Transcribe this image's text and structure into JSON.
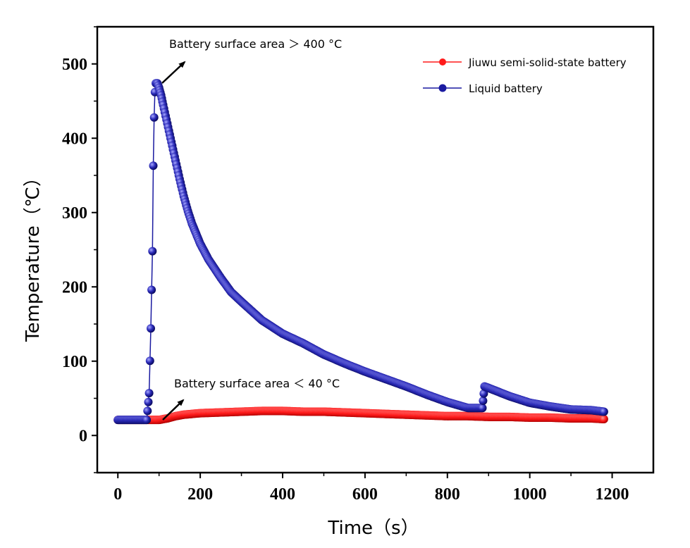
{
  "chart_data": {
    "type": "scatter",
    "xlabel": "Time（s）",
    "ylabel": "Temperature（℃）",
    "xlim": [
      -50,
      1300
    ],
    "ylim": [
      -50,
      550
    ],
    "xticks": [
      "0",
      "200",
      "400",
      "600",
      "800",
      "1000",
      "1200"
    ],
    "yticks": [
      "0",
      "100",
      "200",
      "300",
      "400",
      "500"
    ],
    "grid": false,
    "legend_position": "top-right",
    "series": [
      {
        "name": "Jiuwu semi-solid-state battery",
        "color": "#ff1a1a",
        "x": [
          0,
          50,
          80,
          100,
          120,
          140,
          160,
          180,
          200,
          250,
          300,
          350,
          400,
          450,
          500,
          550,
          600,
          650,
          700,
          750,
          800,
          850,
          900,
          950,
          1000,
          1050,
          1100,
          1150,
          1180
        ],
        "y": [
          21,
          21,
          21,
          21,
          23,
          26,
          28,
          29,
          30,
          31,
          32,
          33,
          33,
          32,
          32,
          31,
          30,
          29,
          28,
          27,
          26,
          26,
          25,
          25,
          24,
          24,
          23,
          23,
          22
        ]
      },
      {
        "name": "Liquid battery",
        "color": "#1a1aa0",
        "x": [
          0,
          40,
          70,
          76,
          80,
          84,
          86,
          88,
          90,
          92,
          96,
          100,
          105,
          110,
          120,
          130,
          140,
          150,
          160,
          170,
          180,
          200,
          220,
          250,
          275,
          300,
          350,
          400,
          450,
          500,
          550,
          600,
          650,
          700,
          750,
          800,
          850,
          885,
          890,
          900,
          950,
          1000,
          1050,
          1100,
          1150,
          1180
        ],
        "y": [
          21,
          21,
          21,
          57,
          144,
          248,
          363,
          428,
          462,
          474,
          474,
          468,
          458,
          445,
          420,
          395,
          370,
          345,
          322,
          302,
          285,
          258,
          237,
          212,
          193,
          180,
          155,
          137,
          124,
          109,
          97,
          86,
          76,
          66,
          55,
          45,
          37,
          37,
          66,
          64,
          53,
          44,
          39,
          35,
          34,
          32
        ]
      }
    ],
    "annotations": [
      {
        "text": "Battery surface area ＞ 400 °C"
      },
      {
        "text": "Battery surface area ＜ 40 °C"
      }
    ]
  }
}
